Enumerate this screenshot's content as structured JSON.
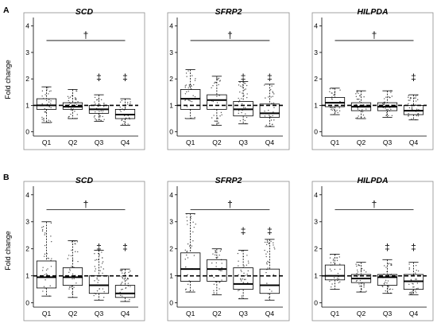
{
  "figure": {
    "panel_labels": [
      "A",
      "B"
    ],
    "y_axis_label": "Fold change"
  },
  "chart_data": [
    {
      "type": "boxplot",
      "panel": "A",
      "title": "SCD",
      "categories": [
        "Q1",
        "Q2",
        "Q3",
        "Q4"
      ],
      "ylim": [
        -0.1,
        4.2
      ],
      "yticks": [
        0,
        1,
        2,
        3,
        4
      ],
      "ylabel": "Fold change",
      "reference_line": 1,
      "boxes": [
        {
          "category": "Q1",
          "whisker_low": 0.35,
          "q1": 0.85,
          "median": 1.0,
          "q3": 1.25,
          "whisker_high": 1.7
        },
        {
          "category": "Q2",
          "whisker_low": 0.5,
          "q1": 0.85,
          "median": 0.95,
          "q3": 1.1,
          "whisker_high": 1.6
        },
        {
          "category": "Q3",
          "whisker_low": 0.4,
          "q1": 0.7,
          "median": 0.85,
          "q3": 1.0,
          "whisker_high": 1.4
        },
        {
          "category": "Q4",
          "whisker_low": 0.25,
          "q1": 0.5,
          "median": 0.65,
          "q3": 0.85,
          "whisker_high": 1.25
        }
      ],
      "bracket": {
        "from": "Q1",
        "to": "Q4",
        "y": 3.45,
        "symbol": "†"
      },
      "markers": [
        {
          "category": "Q3",
          "symbol": "‡",
          "y": 1.95
        },
        {
          "category": "Q4",
          "symbol": "‡",
          "y": 1.95
        }
      ]
    },
    {
      "type": "boxplot",
      "panel": "A",
      "title": "SFRP2",
      "categories": [
        "Q1",
        "Q2",
        "Q3",
        "Q4"
      ],
      "ylim": [
        -0.1,
        4.2
      ],
      "yticks": [
        0,
        1,
        2,
        3,
        4
      ],
      "reference_line": 1,
      "boxes": [
        {
          "category": "Q1",
          "whisker_low": 0.5,
          "q1": 0.85,
          "median": 1.25,
          "q3": 1.6,
          "whisker_high": 2.35
        },
        {
          "category": "Q2",
          "whisker_low": 0.25,
          "q1": 0.85,
          "median": 1.2,
          "q3": 1.4,
          "whisker_high": 2.1
        },
        {
          "category": "Q3",
          "whisker_low": 0.3,
          "q1": 0.6,
          "median": 0.85,
          "q3": 1.15,
          "whisker_high": 1.9
        },
        {
          "category": "Q4",
          "whisker_low": 0.2,
          "q1": 0.55,
          "median": 0.7,
          "q3": 1.05,
          "whisker_high": 1.8
        }
      ],
      "bracket": {
        "from": "Q1",
        "to": "Q4",
        "y": 3.45,
        "symbol": "†"
      },
      "markers": [
        {
          "category": "Q3",
          "symbol": "‡",
          "y": 1.95
        },
        {
          "category": "Q4",
          "symbol": "‡",
          "y": 1.95
        }
      ]
    },
    {
      "type": "boxplot",
      "panel": "A",
      "title": "HILPDA",
      "categories": [
        "Q1",
        "Q2",
        "Q3",
        "Q4"
      ],
      "ylim": [
        -0.1,
        4.2
      ],
      "yticks": [
        0,
        1,
        2,
        3,
        4
      ],
      "reference_line": 1,
      "boxes": [
        {
          "category": "Q1",
          "whisker_low": 0.65,
          "q1": 0.95,
          "median": 1.1,
          "q3": 1.3,
          "whisker_high": 1.65
        },
        {
          "category": "Q2",
          "whisker_low": 0.5,
          "q1": 0.8,
          "median": 0.95,
          "q3": 1.1,
          "whisker_high": 1.55
        },
        {
          "category": "Q3",
          "whisker_low": 0.55,
          "q1": 0.8,
          "median": 0.95,
          "q3": 1.1,
          "whisker_high": 1.55
        },
        {
          "category": "Q4",
          "whisker_low": 0.45,
          "q1": 0.65,
          "median": 0.8,
          "q3": 1.0,
          "whisker_high": 1.4
        }
      ],
      "bracket": {
        "from": "Q1",
        "to": "Q4",
        "y": 3.45,
        "symbol": "†"
      },
      "markers": [
        {
          "category": "Q4",
          "symbol": "‡",
          "y": 1.95
        }
      ]
    },
    {
      "type": "boxplot",
      "panel": "B",
      "title": "SCD",
      "categories": [
        "Q1",
        "Q2",
        "Q3",
        "Q4"
      ],
      "ylim": [
        -0.1,
        4.2
      ],
      "yticks": [
        0,
        1,
        2,
        3,
        4
      ],
      "ylabel": "Fold change",
      "reference_line": 1,
      "boxes": [
        {
          "category": "Q1",
          "whisker_low": 0.25,
          "q1": 0.55,
          "median": 0.95,
          "q3": 1.55,
          "whisker_high": 3.0
        },
        {
          "category": "Q2",
          "whisker_low": 0.2,
          "q1": 0.65,
          "median": 0.95,
          "q3": 1.3,
          "whisker_high": 2.3
        },
        {
          "category": "Q3",
          "whisker_low": 0.1,
          "q1": 0.35,
          "median": 0.65,
          "q3": 1.0,
          "whisker_high": 1.95
        },
        {
          "category": "Q4",
          "whisker_low": 0.05,
          "q1": 0.2,
          "median": 0.35,
          "q3": 0.65,
          "whisker_high": 1.25
        }
      ],
      "bracket": {
        "from": "Q1",
        "to": "Q4",
        "y": 3.45,
        "symbol": "†"
      },
      "markers": [
        {
          "category": "Q3",
          "symbol": "‡",
          "y": 1.95
        },
        {
          "category": "Q4",
          "symbol": "‡",
          "y": 1.95
        }
      ]
    },
    {
      "type": "boxplot",
      "panel": "B",
      "title": "SFRP2",
      "categories": [
        "Q1",
        "Q2",
        "Q3",
        "Q4"
      ],
      "ylim": [
        -0.1,
        4.2
      ],
      "yticks": [
        0,
        1,
        2,
        3,
        4
      ],
      "reference_line": 1,
      "boxes": [
        {
          "category": "Q1",
          "whisker_low": 0.4,
          "q1": 0.8,
          "median": 1.25,
          "q3": 1.85,
          "whisker_high": 3.3
        },
        {
          "category": "Q2",
          "whisker_low": 0.3,
          "q1": 0.8,
          "median": 1.25,
          "q3": 1.6,
          "whisker_high": 2.0
        },
        {
          "category": "Q3",
          "whisker_low": 0.15,
          "q1": 0.5,
          "median": 0.7,
          "q3": 1.3,
          "whisker_high": 1.95
        },
        {
          "category": "Q4",
          "whisker_low": 0.1,
          "q1": 0.35,
          "median": 0.65,
          "q3": 1.25,
          "whisker_high": 2.35
        }
      ],
      "bracket": {
        "from": "Q1",
        "to": "Q4",
        "y": 3.45,
        "symbol": "†"
      },
      "markers": [
        {
          "category": "Q3",
          "symbol": "‡",
          "y": 2.55
        },
        {
          "category": "Q4",
          "symbol": "‡",
          "y": 2.55
        }
      ]
    },
    {
      "type": "boxplot",
      "panel": "B",
      "title": "HILPDA",
      "categories": [
        "Q1",
        "Q2",
        "Q3",
        "Q4"
      ],
      "ylim": [
        -0.1,
        4.2
      ],
      "yticks": [
        0,
        1,
        2,
        3,
        4
      ],
      "reference_line": 1,
      "boxes": [
        {
          "category": "Q1",
          "whisker_low": 0.5,
          "q1": 0.85,
          "median": 1.0,
          "q3": 1.4,
          "whisker_high": 1.8
        },
        {
          "category": "Q2",
          "whisker_low": 0.4,
          "q1": 0.75,
          "median": 0.9,
          "q3": 1.05,
          "whisker_high": 1.5
        },
        {
          "category": "Q3",
          "whisker_low": 0.35,
          "q1": 0.65,
          "median": 0.95,
          "q3": 1.05,
          "whisker_high": 1.6
        },
        {
          "category": "Q4",
          "whisker_low": 0.3,
          "q1": 0.5,
          "median": 0.8,
          "q3": 1.05,
          "whisker_high": 1.5
        }
      ],
      "bracket": {
        "from": "Q1",
        "to": "Q4",
        "y": 3.45,
        "symbol": "†"
      },
      "markers": [
        {
          "category": "Q3",
          "symbol": "‡",
          "y": 1.95
        },
        {
          "category": "Q4",
          "symbol": "‡",
          "y": 1.95
        }
      ]
    }
  ]
}
